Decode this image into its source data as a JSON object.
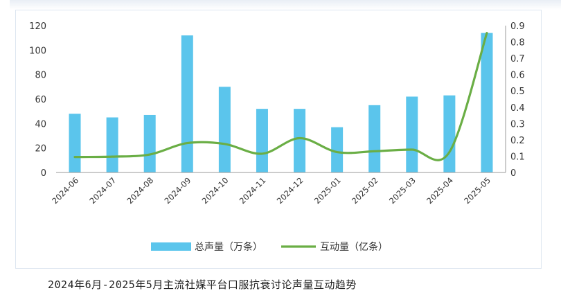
{
  "caption": "2024年6月-2025年5月主流社媒平台口服抗衰讨论声量互动趋势",
  "chart_data": {
    "type": "bar+line",
    "categories": [
      "2024-06",
      "2024-07",
      "2024-08",
      "2024-09",
      "2024-10",
      "2024-11",
      "2024-12",
      "2025-01",
      "2025-02",
      "2025-03",
      "2025-04",
      "2025-05"
    ],
    "series": [
      {
        "name": "总声量（万条）",
        "type": "bar",
        "axis": "left",
        "color": "#5bc5ec",
        "values": [
          48,
          45,
          47,
          112,
          70,
          52,
          52,
          37,
          55,
          62,
          63,
          114
        ]
      },
      {
        "name": "互动量（亿条）",
        "type": "line",
        "axis": "right",
        "color": "#6aae45",
        "values": [
          0.095,
          0.097,
          0.11,
          0.18,
          0.175,
          0.115,
          0.21,
          0.125,
          0.13,
          0.14,
          0.125,
          0.855
        ]
      }
    ],
    "y_left": {
      "ylim": [
        0,
        120
      ],
      "ticks": [
        0,
        20,
        40,
        60,
        80,
        100,
        120
      ]
    },
    "y_right": {
      "ylim": [
        0,
        0.9
      ],
      "ticks": [
        "0",
        "0.1",
        "0.2",
        "0.3",
        "0.4",
        "0.5",
        "0.6",
        "0.7",
        "0.8",
        "0.9"
      ]
    },
    "legend": "bottom-center",
    "grid": false
  }
}
